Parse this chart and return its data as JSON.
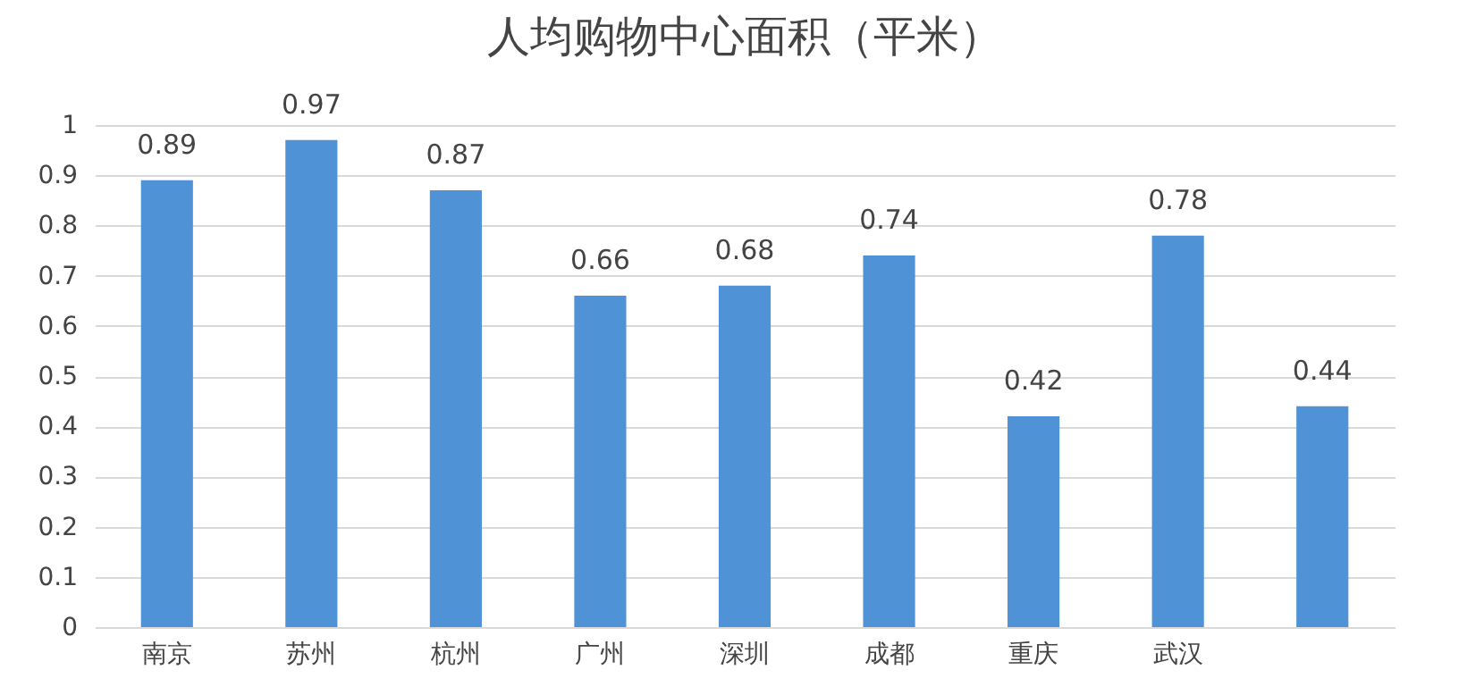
{
  "chart_data": {
    "type": "bar",
    "title": "人均购物中心面积（平米）",
    "categories": [
      "南京",
      "苏州",
      "杭州",
      "广州",
      "深圳",
      "成都",
      "重庆",
      "武汉",
      null
    ],
    "values": [
      0.89,
      0.97,
      0.87,
      0.66,
      0.68,
      0.74,
      0.42,
      0.78,
      0.44
    ],
    "color": "#4f93d6",
    "ylim": [
      0,
      1
    ],
    "yticks": [
      0,
      0.1,
      0.2,
      0.3,
      0.4,
      0.5,
      0.6,
      0.7,
      0.8,
      0.9,
      1
    ],
    "grid": "y",
    "data_labels": true
  }
}
